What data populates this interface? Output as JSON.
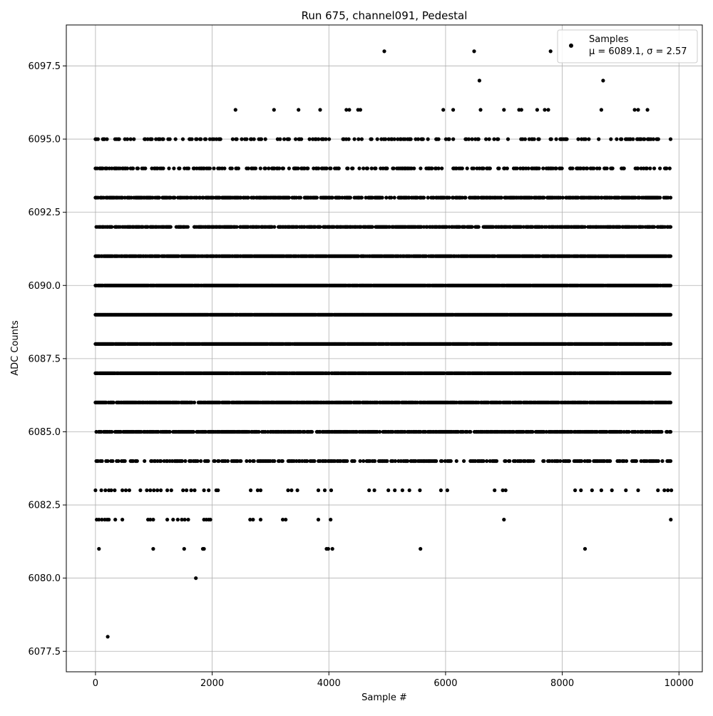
{
  "chart_data": {
    "type": "scatter",
    "title": "Run 675, channel091, Pedestal",
    "xlabel": "Sample #",
    "ylabel": "ADC Counts",
    "xlim": [
      -500,
      10400
    ],
    "ylim": [
      6076.8,
      6098.9
    ],
    "xticks": [
      0,
      2000,
      4000,
      6000,
      8000,
      10000
    ],
    "yticks": [
      6077.5,
      6080.0,
      6082.5,
      6085.0,
      6087.5,
      6090.0,
      6092.5,
      6095.0,
      6097.5
    ],
    "xtick_labels": [
      "0",
      "2000",
      "4000",
      "6000",
      "8000",
      "10000"
    ],
    "ytick_labels": [
      "6077.5",
      "6080.0",
      "6082.5",
      "6085.0",
      "6087.5",
      "6090.0",
      "6092.5",
      "6095.0",
      "6097.5"
    ],
    "grid": true,
    "legend": {
      "placement": "upper-right",
      "label_line1": "Samples",
      "label_line2": "μ = 6089.1, σ = 2.57"
    },
    "marker_color": "#000000",
    "series": [
      {
        "name": "Samples",
        "bands": [
          {
            "y": 6078,
            "x": [
              210
            ]
          },
          {
            "y": 6080,
            "x": [
              1720
            ]
          },
          {
            "y": 6081,
            "x": [
              60,
              990,
              1520,
              1840,
              1860,
              3960,
              3990,
              4060,
              5570,
              8390
            ]
          },
          {
            "y": 6082,
            "x": [
              20,
              60,
              110,
              160,
              200,
              230,
              340,
              460,
              900,
              940,
              990,
              1230,
              1330,
              1410,
              1480,
              1530,
              1590,
              1860,
              1900,
              1940,
              1970,
              2650,
              2700,
              2830,
              3210,
              3260,
              3820,
              4030,
              7000,
              9860
            ]
          },
          {
            "y": 6083,
            "x": [
              0,
              100,
              170,
              230,
              270,
              330,
              460,
              520,
              580,
              770,
              880,
              940,
              1000,
              1060,
              1120,
              1230,
              1300,
              1500,
              1560,
              1640,
              1700,
              1860,
              1940,
              2070,
              2100,
              2660,
              2780,
              2830,
              3300,
              3360,
              3460,
              3820,
              3930,
              4040,
              4690,
              4780,
              5020,
              5130,
              5260,
              5380,
              5560,
              5920,
              6030,
              6840,
              6980,
              7030,
              8220,
              8320,
              8510,
              8670,
              8850,
              9090,
              9300,
              9640,
              9750,
              9810,
              9870
            ]
          }
        ],
        "generated_bands": [
          {
            "y": 6084,
            "density": 0.45
          },
          {
            "y": 6085,
            "density": 0.72
          },
          {
            "y": 6086,
            "density": 0.82
          },
          {
            "y": 6087,
            "density": 0.92
          },
          {
            "y": 6088,
            "density": 0.96
          },
          {
            "y": 6089,
            "density": 0.98
          },
          {
            "y": 6090,
            "density": 0.96
          },
          {
            "y": 6091,
            "density": 0.9
          },
          {
            "y": 6092,
            "density": 0.72
          },
          {
            "y": 6093,
            "density": 0.66
          },
          {
            "y": 6094,
            "density": 0.35
          },
          {
            "y": 6095,
            "density": 0.26
          }
        ],
        "upper_bands": [
          {
            "y": 6096,
            "x": [
              2400,
              3060,
              3480,
              3850,
              4300,
              4350,
              4500,
              4540,
              5960,
              6130,
              6600,
              7000,
              7260,
              7300,
              7570,
              7700,
              7760,
              8670,
              9240,
              9300,
              9460
            ]
          },
          {
            "y": 6097,
            "x": [
              6580,
              8700
            ]
          },
          {
            "y": 6098,
            "x": [
              4950,
              6490,
              7800
            ]
          }
        ]
      }
    ]
  }
}
